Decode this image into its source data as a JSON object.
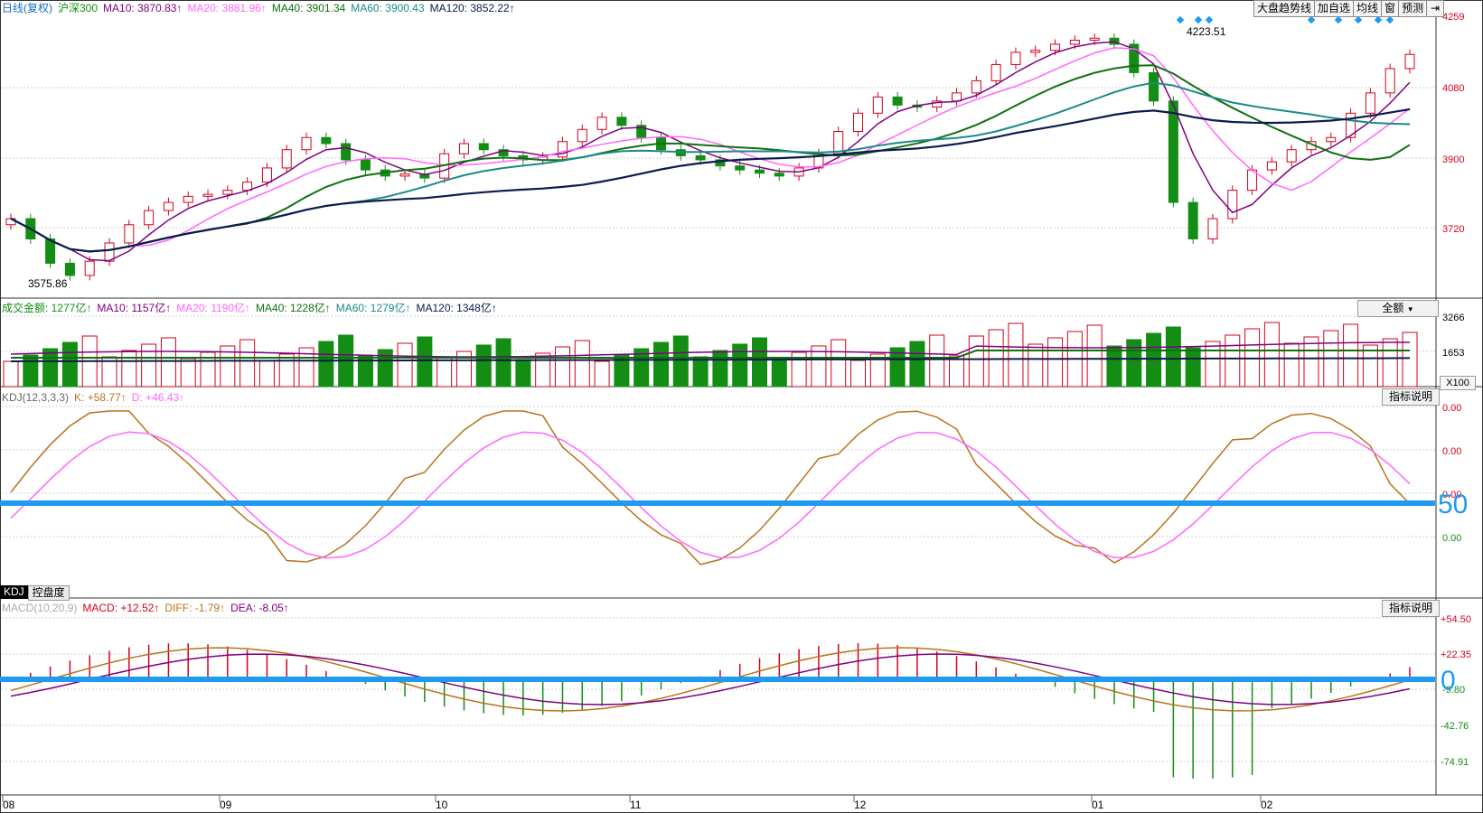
{
  "price_legend": {
    "title": "日线(复权)",
    "symbol": "沪深300",
    "ma10": "MA10: 3870.83↑",
    "ma20": "MA20: 3881.96↑",
    "ma40": "MA40: 3901.34",
    "ma60": "MA60: 3900.43",
    "ma120": "MA120: 3852.22↑"
  },
  "toolbar": {
    "trend": "大盘趋势线",
    "add_watch": "加自选",
    "ma_line": "均线",
    "window": "窗",
    "forecast": "预测",
    "exit_icon": "exit-arrow-icon"
  },
  "price_axis": [
    "4259",
    "4080",
    "3900",
    "3720"
  ],
  "price_markers": {
    "high": "4223.51",
    "low": "3575.86"
  },
  "volume_legend": {
    "title": "成交金额: 1277亿↑",
    "ma10": "MA10: 1157亿↑",
    "ma20": "MA20: 1190亿↑",
    "ma40": "MA40: 1228亿↑",
    "ma60": "MA60: 1279亿↑",
    "ma120": "MA120: 1348亿↑"
  },
  "volume_select": "全额",
  "volume_axis": [
    "3266",
    "1653"
  ],
  "volume_unit": "X100",
  "kdj_legend": {
    "title": "KDJ(12,3,3,3)",
    "k": "K: +58.77↑",
    "d": "D: +46.43↑"
  },
  "kdj_help": "指标说明",
  "kdj_axis": [
    "0.00",
    "0.00",
    "0.00",
    "0.00"
  ],
  "kdj_line_label": "50",
  "tabs": {
    "kdj": "KDJ",
    "control": "控盘度"
  },
  "macd_legend": {
    "title": "MACD(10,20,9)",
    "macd": "MACD: +12.52↑",
    "diff": "DIFF: -1.79↑",
    "dea": "DEA: -8.05↑"
  },
  "macd_help": "指标说明",
  "macd_axis": [
    "+54.50",
    "+22.35",
    "-9.80",
    "-42.76",
    "-74.91"
  ],
  "macd_line_label": "0",
  "date_axis": [
    "08",
    "09",
    "10",
    "11",
    "12",
    "01",
    "02"
  ],
  "colors": {
    "up": "#d0021b",
    "down": "#138d13",
    "ma10": "#800080",
    "ma20": "#ff66ff",
    "ma40": "#107010",
    "ma60": "#1a8a8a",
    "ma120": "#0c1a4d",
    "kdj_k": "#b8731c",
    "kdj_d": "#ff66ff",
    "highlight": "#1e9bf0"
  },
  "chart_data": {
    "type": "candlestick",
    "series_samples": {
      "price_close": [
        3760,
        3710,
        3650,
        3620,
        3655,
        3700,
        3745,
        3780,
        3800,
        3815,
        3820,
        3830,
        3850,
        3885,
        3930,
        3960,
        3945,
        3905,
        3880,
        3865,
        3870,
        3860,
        3920,
        3945,
        3930,
        3915,
        3905,
        3912,
        3950,
        3980,
        4010,
        3990,
        3960,
        3930,
        3915,
        3905,
        3890,
        3880,
        3872,
        3865,
        3885,
        3920,
        3975,
        4020,
        4060,
        4040,
        4035,
        4050,
        4070,
        4100,
        4140,
        4170,
        4175,
        4190,
        4200,
        4205,
        4190,
        4120,
        4050,
        3800,
        3710,
        3760,
        3830,
        3880,
        3900,
        3930,
        3950,
        3960,
        4020,
        4070,
        4130,
        4165
      ]
    }
  }
}
